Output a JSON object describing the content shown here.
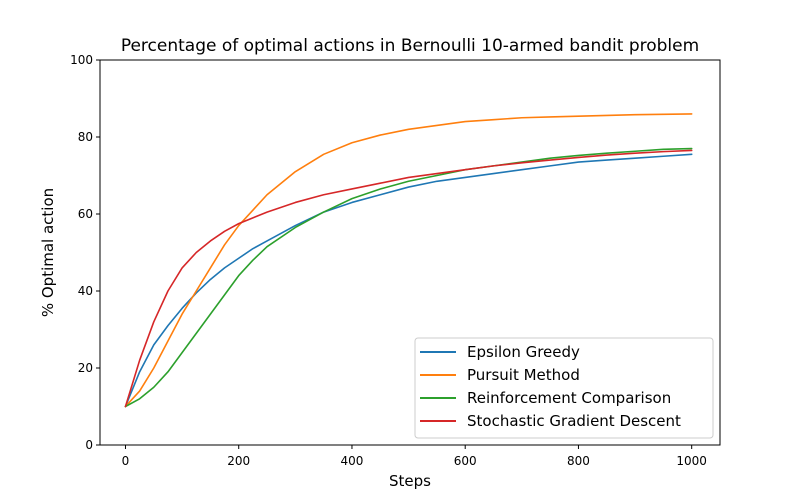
{
  "chart_data": {
    "type": "line",
    "title": "Percentage of optimal actions in Bernoulli 10-armed bandit problem",
    "xlabel": "Steps",
    "ylabel": "% Optimal action",
    "xlim": [
      -45,
      1050
    ],
    "ylim": [
      0,
      100
    ],
    "xticks": [
      0,
      200,
      400,
      600,
      800,
      1000
    ],
    "yticks": [
      0,
      20,
      40,
      60,
      80,
      100
    ],
    "grid": false,
    "legend_position": "lower-right",
    "series": [
      {
        "name": "Epsilon Greedy",
        "color": "#1f77b4",
        "x": [
          0,
          25,
          50,
          75,
          100,
          125,
          150,
          175,
          200,
          225,
          250,
          300,
          350,
          400,
          450,
          500,
          550,
          600,
          650,
          700,
          750,
          800,
          850,
          900,
          950,
          1000
        ],
        "y": [
          10,
          19,
          26,
          31,
          35.5,
          39.5,
          43,
          46,
          48.5,
          51,
          53,
          57,
          60.5,
          63,
          65,
          67,
          68.5,
          69.5,
          70.5,
          71.5,
          72.5,
          73.5,
          74,
          74.5,
          75,
          75.5
        ]
      },
      {
        "name": "Pursuit Method",
        "color": "#ff7f0e",
        "x": [
          0,
          25,
          50,
          75,
          100,
          125,
          150,
          175,
          200,
          225,
          250,
          300,
          350,
          400,
          450,
          500,
          550,
          600,
          650,
          700,
          750,
          800,
          850,
          900,
          950,
          1000
        ],
        "y": [
          10,
          14,
          20,
          27,
          34,
          40,
          46,
          52,
          57,
          61,
          65,
          71,
          75.5,
          78.5,
          80.5,
          82,
          83,
          84,
          84.5,
          85,
          85.2,
          85.4,
          85.6,
          85.8,
          85.9,
          86
        ]
      },
      {
        "name": "Reinforcement Comparison",
        "color": "#2ca02c",
        "x": [
          0,
          25,
          50,
          75,
          100,
          125,
          150,
          175,
          200,
          225,
          250,
          300,
          350,
          400,
          450,
          500,
          550,
          600,
          650,
          700,
          750,
          800,
          850,
          900,
          950,
          1000
        ],
        "y": [
          10,
          12,
          15,
          19,
          24,
          29,
          34,
          39,
          44,
          48,
          51.5,
          56.5,
          60.5,
          64,
          66.5,
          68.5,
          70,
          71.5,
          72.5,
          73.5,
          74.5,
          75.2,
          75.8,
          76.3,
          76.8,
          77
        ]
      },
      {
        "name": "Stochastic Gradient Descent",
        "color": "#d62728",
        "x": [
          0,
          25,
          50,
          75,
          100,
          125,
          150,
          175,
          200,
          225,
          250,
          300,
          350,
          400,
          450,
          500,
          550,
          600,
          650,
          700,
          750,
          800,
          850,
          900,
          950,
          1000
        ],
        "y": [
          10,
          22,
          32,
          40,
          46,
          50,
          53,
          55.5,
          57.5,
          59,
          60.5,
          63,
          65,
          66.5,
          68,
          69.5,
          70.5,
          71.5,
          72.5,
          73.3,
          74,
          74.7,
          75.3,
          75.8,
          76.2,
          76.5
        ]
      }
    ]
  }
}
